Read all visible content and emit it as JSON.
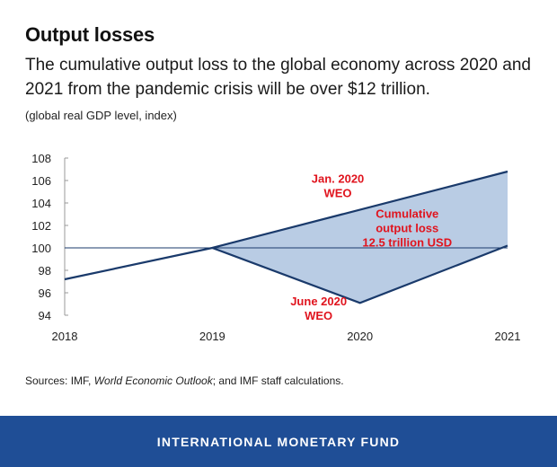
{
  "header": {
    "title": "Output losses",
    "subtitle": "The cumulative output loss to the global economy across 2020 and 2021 from the pandemic crisis will be over $12 trillion.",
    "axis_note": "(global real GDP level, index)"
  },
  "sources": {
    "prefix": "Sources: IMF, ",
    "publication": "World Economic Outlook",
    "suffix": "; and IMF staff calculations."
  },
  "footer": {
    "org": "INTERNATIONAL MONETARY FUND",
    "band_color": "#1f4e96"
  },
  "chart_data": {
    "type": "line",
    "title": "Output losses",
    "ylabel": "(global real GDP level, index)",
    "xlabel": "",
    "x": [
      2018,
      2019,
      2020,
      2021
    ],
    "ylim": [
      94,
      108
    ],
    "yticks": [
      94,
      96,
      98,
      100,
      102,
      104,
      106,
      108
    ],
    "reference_line": 100,
    "series": [
      {
        "name": "Jan. 2020 WEO",
        "x": [
          2018,
          2019,
          2021
        ],
        "values": [
          97.2,
          100.0,
          106.8
        ],
        "color": "#1a3a6b"
      },
      {
        "name": "June 2020 WEO",
        "x": [
          2019,
          2020,
          2021
        ],
        "values": [
          100.0,
          95.1,
          100.2
        ],
        "color": "#1a3a6b"
      }
    ],
    "shaded_area": {
      "between": [
        "Jan. 2020 WEO",
        "June 2020 WEO"
      ],
      "from": 2019,
      "to": 2021,
      "fill": "#b9cce4"
    },
    "annotations": [
      {
        "lines": [
          "Jan. 2020",
          "WEO"
        ],
        "x": 2019.85,
        "y": 105.8,
        "color": "#e0141e"
      },
      {
        "lines": [
          "Cumulative",
          "output loss",
          "12.5 trillion USD"
        ],
        "x": 2020.32,
        "y": 102.7,
        "color": "#e0141e"
      },
      {
        "lines": [
          "June 2020",
          "WEO"
        ],
        "x": 2019.72,
        "y": 94.9,
        "color": "#e0141e"
      }
    ],
    "grid": false,
    "colors": {
      "line": "#1a3a6b",
      "fill": "#b9cce4",
      "annotation": "#e0141e",
      "axis": "#999999"
    }
  }
}
